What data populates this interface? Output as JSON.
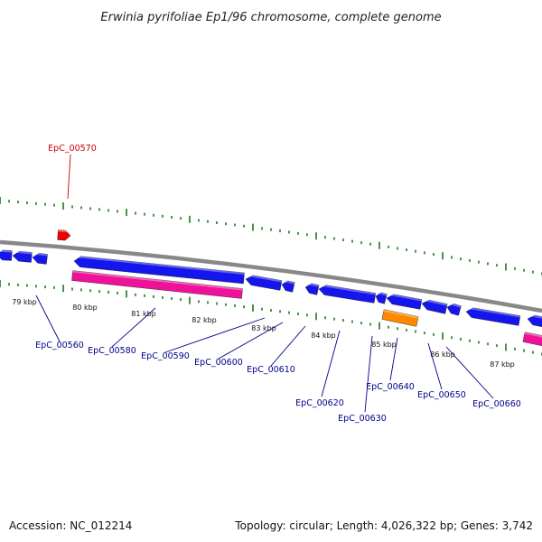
{
  "title": "Erwinia pyrifoliae Ep1/96 chromosome, complete genome",
  "accession": "Accession: NC_012214",
  "summary": "Topology: circular; Length: 4,026,322 bp; Genes: 3,742",
  "colors": {
    "backbone": "#888888",
    "tick": "#1a7a1a",
    "gene_blue": "#1515ee",
    "gene_pink": "#ee1199",
    "gene_orange": "#ff8800",
    "gene_red": "#ee0000",
    "label_blue": "#00008b",
    "label_red": "#cc0000"
  },
  "scale_labels": [
    "79 kbp",
    "80 kbp",
    "81 kbp",
    "82 kbp",
    "83 kbp",
    "84 kbp",
    "85 kbp",
    "86 kbp",
    "87 kbp"
  ],
  "gene_labels": [
    {
      "name": "EpC_00570",
      "color": "red"
    },
    {
      "name": "EpC_00560",
      "color": "blue"
    },
    {
      "name": "EpC_00580",
      "color": "blue"
    },
    {
      "name": "EpC_00590",
      "color": "blue"
    },
    {
      "name": "EpC_00600",
      "color": "blue"
    },
    {
      "name": "EpC_00610",
      "color": "blue"
    },
    {
      "name": "EpC_00620",
      "color": "blue"
    },
    {
      "name": "EpC_00630",
      "color": "blue"
    },
    {
      "name": "EpC_00640",
      "color": "blue"
    },
    {
      "name": "EpC_00650",
      "color": "blue"
    },
    {
      "name": "EpC_00660",
      "color": "blue"
    }
  ]
}
